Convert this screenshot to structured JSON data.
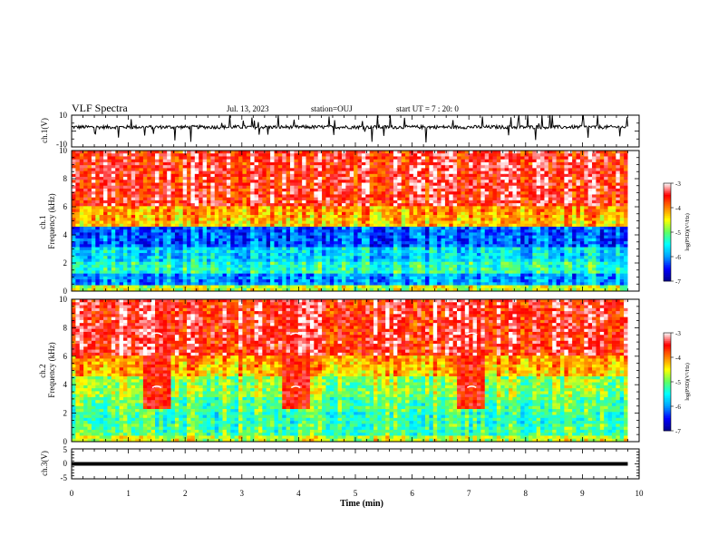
{
  "header": {
    "title": "VLF Spectra",
    "date": "Jul. 13, 2023",
    "station": "station=OUJ",
    "start": "start UT =  7 : 20: 0"
  },
  "chart_data": [
    {
      "type": "line",
      "panel": "ch1-waveform",
      "ylabel": "ch.1(V)",
      "ylim": [
        -10,
        10
      ],
      "y_ticks": [
        "10",
        "-10"
      ],
      "x_range_min": [
        0,
        9.8
      ],
      "baseline": 2.5
    },
    {
      "type": "heatmap",
      "panel": "ch1-spectrogram",
      "ylabel": "ch.1 Frequency (kHz)",
      "ylim": [
        0,
        10
      ],
      "y_ticks": [
        "0",
        "2",
        "4",
        "6",
        "8",
        "10"
      ],
      "x_range_min": [
        0,
        9.8
      ],
      "colorbar": {
        "label": "log(PSD)(V²/Hz)",
        "range": [
          -7,
          -3
        ],
        "ticks": [
          "-3",
          "-4",
          "-5",
          "-6",
          "-7"
        ]
      },
      "bursts_min": []
    },
    {
      "type": "heatmap",
      "panel": "ch2-spectrogram",
      "ylabel": "ch.2 Frequency (kHz)",
      "ylim": [
        0,
        10
      ],
      "y_ticks": [
        "0",
        "2",
        "4",
        "6",
        "8",
        "10"
      ],
      "x_range_min": [
        0,
        9.8
      ],
      "colorbar": {
        "label": "log(PSD)(V²/Hz)",
        "range": [
          -7,
          -3
        ],
        "ticks": [
          "-3",
          "-4",
          "-5",
          "-6",
          "-7"
        ]
      },
      "bursts_min": [
        1.5,
        3.95,
        7.05
      ]
    },
    {
      "type": "line",
      "panel": "ch3-waveform",
      "ylabel": "ch.3(V)",
      "ylim": [
        -5,
        5
      ],
      "y_ticks": [
        "5",
        "0",
        "-5"
      ],
      "x_range_min": [
        0,
        9.8
      ],
      "constant_value": 0
    }
  ],
  "x_axis": {
    "label": "Time (min)",
    "ticks": [
      "0",
      "1",
      "2",
      "3",
      "4",
      "5",
      "6",
      "7",
      "8",
      "9",
      "10"
    ],
    "range": [
      0,
      10
    ]
  },
  "colors": {
    "cmap": [
      "#00008f",
      "#0000ff",
      "#00a0ff",
      "#00ffff",
      "#60ff60",
      "#ffff00",
      "#ff8000",
      "#ff0000",
      "#ffffff"
    ]
  }
}
